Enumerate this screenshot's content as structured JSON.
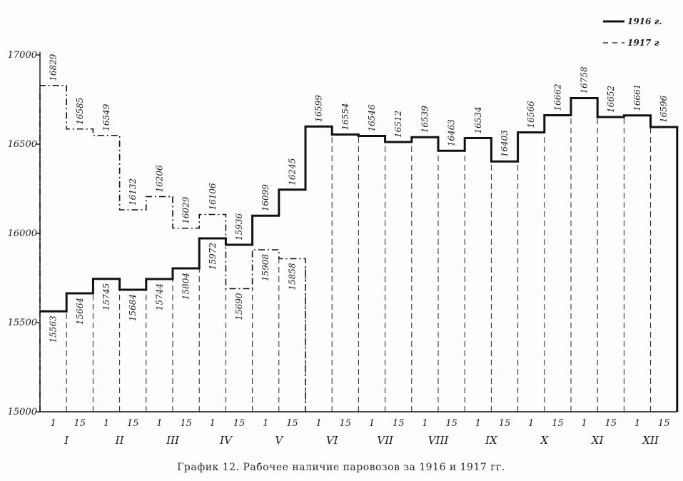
{
  "chart_data": {
    "type": "line",
    "title": "",
    "caption": "График 12. Рабочее наличие паровозов за 1916 и 1917 гг.",
    "xlabel": "",
    "ylabel": "",
    "ylim": [
      15000,
      17000
    ],
    "y_ticks": [
      "15000",
      "15500",
      "16000",
      "16500",
      "17000"
    ],
    "x_day_labels": [
      "1",
      "15",
      "1",
      "15",
      "1",
      "15",
      "1",
      "15",
      "1",
      "15",
      "1",
      "15",
      "1",
      "15",
      "1",
      "15",
      "1",
      "15",
      "1",
      "15",
      "1",
      "15",
      "1",
      "15"
    ],
    "months": [
      "I",
      "II",
      "III",
      "IV",
      "V",
      "VI",
      "VII",
      "VIII",
      "IX",
      "X",
      "XI",
      "XII"
    ],
    "legend": [
      "1916 г.",
      "1917 г"
    ],
    "legend_position": "top-right",
    "series": [
      {
        "name": "1916 г.",
        "style": "solid-bold",
        "values": [
          15563,
          15664,
          15745,
          15684,
          15744,
          15804,
          15972,
          15936,
          16099,
          16245,
          16599,
          16554,
          16546,
          16512,
          16539,
          16463,
          16534,
          16403,
          16566,
          16662,
          16758,
          16652,
          16661,
          16596
        ]
      },
      {
        "name": "1917 г",
        "style": "dash-dot",
        "values": [
          16829,
          16585,
          16549,
          16132,
          16206,
          16029,
          16106,
          15690,
          15908,
          15858
        ]
      }
    ],
    "point_labels_1916": [
      "15563",
      "15664",
      "15745",
      "15684",
      "15744",
      "15804",
      "15972",
      "15936",
      "16099",
      "16245",
      "16599",
      "16554",
      "16546",
      "16512",
      "16539",
      "16463",
      "16534",
      "16403",
      "16566",
      "16662",
      "16758",
      "16652",
      "16661",
      "16596"
    ],
    "point_labels_1917": [
      "16829",
      "16585",
      "16549",
      "16132",
      "16206",
      "16029",
      "16106",
      "15690",
      "15908",
      "15858"
    ]
  }
}
